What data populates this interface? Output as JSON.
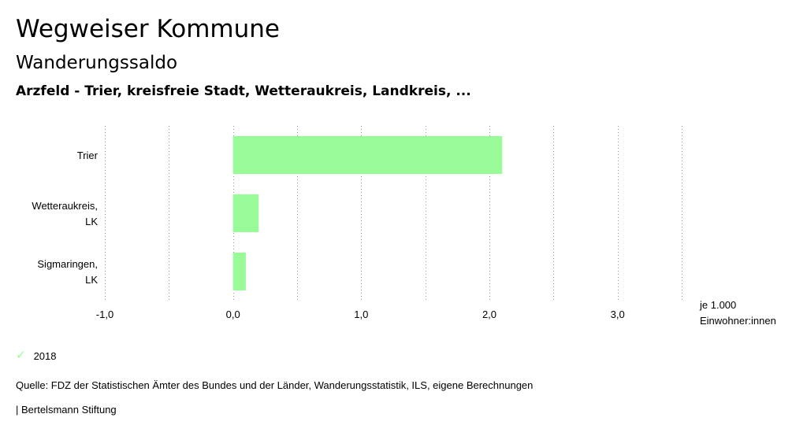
{
  "header": {
    "title": "Wegweiser Kommune",
    "subtitle": "Wanderungssaldo",
    "regions": "Arzfeld - Trier, kreisfreie Stadt, Wetteraukreis, Landkreis, ..."
  },
  "chart_data": {
    "type": "bar",
    "orientation": "horizontal",
    "categories": [
      [
        "Trier"
      ],
      [
        "Wetteraukreis,",
        "LK"
      ],
      [
        "Sigmaringen,",
        "LK"
      ]
    ],
    "series": [
      {
        "name": "2018",
        "values": [
          2.1,
          0.2,
          0.1
        ],
        "color": "#98fb98"
      }
    ],
    "xlim": [
      -1.0,
      3.5
    ],
    "xticks": [
      "-1,0",
      "0,0",
      "1,0",
      "2,0",
      "3,0"
    ],
    "xtick_values": [
      -1,
      0,
      1,
      2,
      3
    ],
    "unit_label": [
      "je 1.000",
      "Einwohner:innen"
    ],
    "grid": "vertical dotted",
    "legend_position": "bottom-left"
  },
  "legend": {
    "label": "2018",
    "color": "#98fb98",
    "icon": "checkmark-icon"
  },
  "footer": {
    "source": "Quelle: FDZ der Statistischen Ämter des Bundes und der Länder, Wanderungsstatistik, ILS, eigene Berechnungen",
    "credit": "| Bertelsmann Stiftung"
  }
}
